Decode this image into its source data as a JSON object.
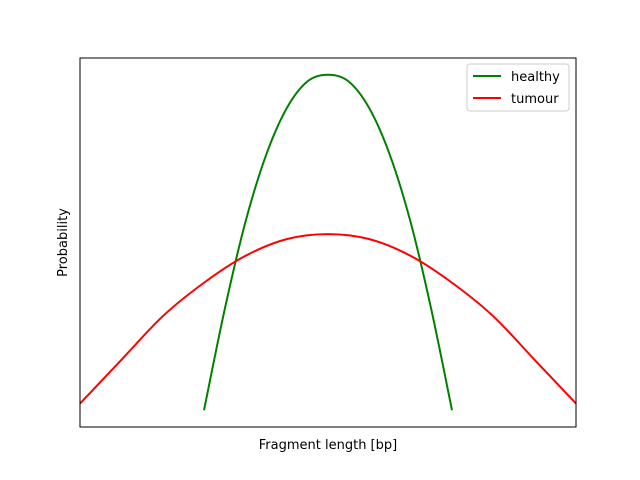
{
  "chart_data": {
    "type": "line",
    "title": "",
    "xlabel": "Fragment length [bp]",
    "ylabel": "Probability",
    "xticks": [],
    "yticks": [],
    "xlim": [
      -3,
      3
    ],
    "ylim": [
      -0.05,
      1.05
    ],
    "grid": false,
    "legend_position": "top-right",
    "series": [
      {
        "name": "healthy",
        "color": "#008000",
        "x": [
          -1.5,
          -1.25,
          -1.0,
          -0.75,
          -0.5,
          -0.25,
          0.0,
          0.25,
          0.5,
          0.75,
          1.0,
          1.25,
          1.5
        ],
        "y": [
          0.0,
          0.3,
          0.56,
          0.76,
          0.9,
          0.98,
          1.0,
          0.98,
          0.9,
          0.76,
          0.56,
          0.3,
          0.0
        ]
      },
      {
        "name": "tumour",
        "color": "#ff0000",
        "x": [
          -3.0,
          -2.5,
          -2.0,
          -1.5,
          -1.0,
          -0.5,
          0.0,
          0.5,
          1.0,
          1.5,
          2.0,
          2.5,
          3.0
        ],
        "y": [
          0.02,
          0.15,
          0.28,
          0.38,
          0.46,
          0.51,
          0.525,
          0.51,
          0.46,
          0.38,
          0.28,
          0.15,
          0.02
        ]
      }
    ]
  }
}
